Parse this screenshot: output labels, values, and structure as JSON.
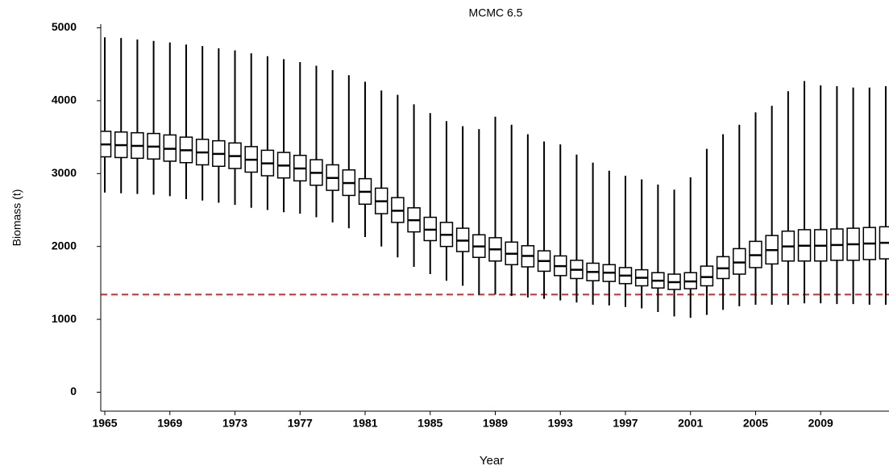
{
  "chart_data": {
    "type": "boxplot",
    "title": "MCMC 6.5",
    "x_label": "Year",
    "y_label": "Biomass (t)",
    "x": [
      1965,
      1966,
      1967,
      1968,
      1969,
      1970,
      1971,
      1972,
      1973,
      1974,
      1975,
      1976,
      1977,
      1978,
      1979,
      1980,
      1981,
      1982,
      1983,
      1984,
      1985,
      1986,
      1987,
      1988,
      1989,
      1990,
      1991,
      1992,
      1993,
      1994,
      1995,
      1996,
      1997,
      1998,
      1999,
      2000,
      2001,
      2002,
      2003,
      2004,
      2005,
      2006,
      2007,
      2008,
      2009,
      2010,
      2011,
      2012,
      2013
    ],
    "whisker_high": [
      4870,
      4860,
      4840,
      4820,
      4800,
      4770,
      4750,
      4720,
      4690,
      4650,
      4610,
      4570,
      4530,
      4480,
      4420,
      4350,
      4260,
      4140,
      4080,
      3950,
      3830,
      3720,
      3650,
      3610,
      3780,
      3670,
      3540,
      3440,
      3400,
      3260,
      3150,
      3040,
      2970,
      2920,
      2850,
      2780,
      2950,
      3340,
      3540,
      3670,
      3840,
      3930,
      4130,
      4270,
      4210,
      4200,
      4180,
      4180,
      4200
    ],
    "q3": [
      3580,
      3570,
      3560,
      3550,
      3530,
      3500,
      3470,
      3450,
      3420,
      3370,
      3320,
      3290,
      3250,
      3190,
      3120,
      3050,
      2930,
      2800,
      2670,
      2530,
      2400,
      2330,
      2250,
      2160,
      2120,
      2060,
      2010,
      1940,
      1870,
      1810,
      1770,
      1750,
      1710,
      1680,
      1640,
      1620,
      1640,
      1730,
      1860,
      1970,
      2070,
      2150,
      2210,
      2230,
      2230,
      2240,
      2250,
      2260,
      2270
    ],
    "median": [
      3400,
      3390,
      3380,
      3370,
      3340,
      3320,
      3290,
      3270,
      3240,
      3190,
      3140,
      3110,
      3070,
      3010,
      2940,
      2870,
      2750,
      2620,
      2490,
      2360,
      2230,
      2160,
      2080,
      2000,
      1960,
      1900,
      1870,
      1800,
      1730,
      1680,
      1650,
      1640,
      1600,
      1570,
      1530,
      1510,
      1520,
      1580,
      1700,
      1780,
      1880,
      1950,
      2000,
      2010,
      2010,
      2020,
      2030,
      2040,
      2050
    ],
    "q1": [
      3230,
      3220,
      3210,
      3200,
      3170,
      3150,
      3120,
      3100,
      3070,
      3020,
      2970,
      2940,
      2900,
      2840,
      2770,
      2700,
      2580,
      2450,
      2330,
      2200,
      2080,
      2000,
      1930,
      1850,
      1800,
      1750,
      1720,
      1660,
      1600,
      1560,
      1530,
      1520,
      1490,
      1460,
      1430,
      1410,
      1420,
      1460,
      1560,
      1620,
      1710,
      1760,
      1800,
      1800,
      1800,
      1810,
      1810,
      1820,
      1830
    ],
    "whisker_low": [
      2740,
      2730,
      2720,
      2710,
      2690,
      2650,
      2630,
      2600,
      2570,
      2530,
      2500,
      2470,
      2450,
      2400,
      2330,
      2250,
      2130,
      2000,
      1850,
      1720,
      1620,
      1530,
      1460,
      1340,
      1340,
      1320,
      1300,
      1280,
      1260,
      1230,
      1200,
      1190,
      1170,
      1150,
      1100,
      1040,
      1020,
      1060,
      1130,
      1180,
      1200,
      1200,
      1200,
      1220,
      1220,
      1210,
      1210,
      1200,
      1200
    ],
    "reference_line": {
      "value": 1340,
      "color": "#d62728"
    },
    "color": "#000000",
    "xlim": [
      1964.75,
      2013.2
    ],
    "ylim": [
      -260,
      5050
    ],
    "xticks": [
      1965,
      1969,
      1973,
      1977,
      1981,
      1985,
      1989,
      1993,
      1997,
      2001,
      2005,
      2009
    ],
    "yticks": [
      0,
      1000,
      2000,
      3000,
      4000,
      5000
    ]
  }
}
